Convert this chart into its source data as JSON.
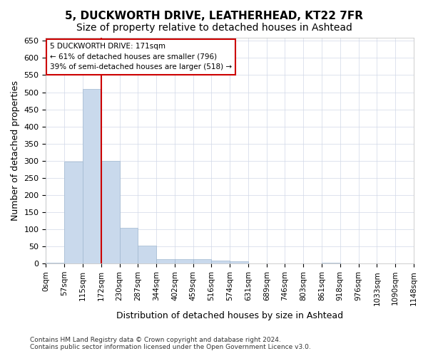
{
  "title": "5, DUCKWORTH DRIVE, LEATHERHEAD, KT22 7FR",
  "subtitle": "Size of property relative to detached houses in Ashtead",
  "xlabel": "Distribution of detached houses by size in Ashtead",
  "ylabel": "Number of detached properties",
  "bin_edges": [
    0,
    57,
    115,
    172,
    230,
    287,
    344,
    402,
    459,
    516,
    574,
    631,
    689,
    746,
    803,
    861,
    918,
    976,
    1033,
    1090,
    1148
  ],
  "bar_heights": [
    3,
    298,
    510,
    300,
    105,
    52,
    13,
    13,
    12,
    8,
    6,
    0,
    1,
    0,
    0,
    2,
    0,
    0,
    1,
    1
  ],
  "bar_color": "#c9d9ec",
  "bar_edge_color": "#a0b8d0",
  "red_line_x": 172,
  "annotation_title": "5 DUCKWORTH DRIVE: 171sqm",
  "annotation_line1": "← 61% of detached houses are smaller (796)",
  "annotation_line2": "39% of semi-detached houses are larger (518) →",
  "annotation_box_color": "#ffffff",
  "annotation_box_edge_color": "#cc0000",
  "footer_line1": "Contains HM Land Registry data © Crown copyright and database right 2024.",
  "footer_line2": "Contains public sector information licensed under the Open Government Licence v3.0.",
  "ylim": [
    0,
    660
  ],
  "background_color": "#ffffff",
  "grid_color": "#d0d8e8",
  "title_fontsize": 11,
  "subtitle_fontsize": 10,
  "tick_label_fontsize": 7.5,
  "ylabel_fontsize": 9,
  "annotation_fontsize": 7.5,
  "footer_fontsize": 6.5
}
